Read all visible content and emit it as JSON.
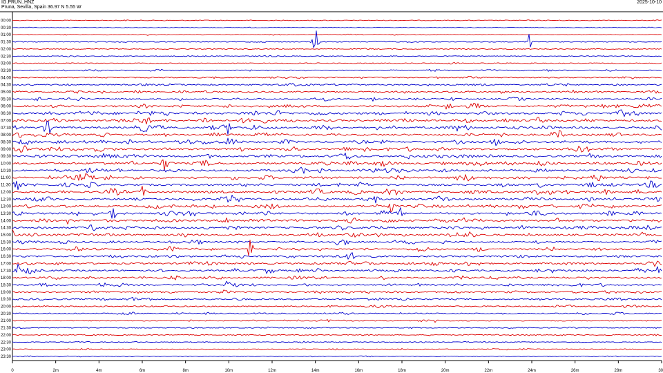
{
  "header": {
    "station": "IG.PRUN..HNZ",
    "location": "Pruna, Sevilla, Spain  36.97 N 5.55 W",
    "date": "2025-10-10"
  },
  "chart_data": {
    "type": "line",
    "title": "IG.PRUN..HNZ",
    "subtitle": "Pruna, Sevilla, Spain  36.97 N 5.55 W",
    "xlabel": "",
    "ylabel": "",
    "xlim": [
      0,
      30
    ],
    "x_unit_suffix": "m",
    "x_ticks": [
      "0",
      "2m",
      "4m",
      "6m",
      "8m",
      "10m",
      "12m",
      "14m",
      "16m",
      "18m",
      "20m",
      "22m",
      "24m",
      "26m",
      "28m",
      "30"
    ],
    "row_labels": [
      "00:00",
      "00:30",
      "01:00",
      "01:30",
      "02:00",
      "02:30",
      "03:00",
      "03:30",
      "04:00",
      "04:30",
      "05:00",
      "05:30",
      "06:00",
      "06:30",
      "07:00",
      "07:30",
      "08:00",
      "08:30",
      "09:00",
      "09:30",
      "10:00",
      "10:30",
      "11:00",
      "11:30",
      "12:00",
      "12:30",
      "13:00",
      "13:30",
      "14:00",
      "14:30",
      "15:00",
      "15:30",
      "16:00",
      "16:30",
      "17:00",
      "17:30",
      "18:00",
      "18:30",
      "19:00",
      "19:30",
      "20:00",
      "20:30",
      "21:00",
      "21:30",
      "22:00",
      "22:30",
      "23:00",
      "23:30"
    ],
    "series_colors": [
      "#dd0000",
      "#0000cc"
    ],
    "row_activity": [
      0.15,
      0.15,
      0.2,
      0.25,
      0.25,
      0.25,
      0.3,
      0.45,
      0.45,
      0.55,
      0.6,
      0.7,
      0.95,
      1.0,
      1.0,
      1.0,
      1.0,
      1.0,
      1.0,
      1.0,
      1.0,
      1.0,
      1.0,
      1.0,
      1.0,
      1.0,
      1.0,
      0.95,
      0.95,
      0.9,
      0.9,
      0.85,
      0.85,
      0.85,
      0.8,
      0.8,
      0.75,
      0.7,
      0.65,
      0.6,
      0.55,
      0.5,
      0.45,
      0.35,
      0.3,
      0.25,
      0.25,
      0.2
    ],
    "events": [
      {
        "row": 3,
        "minute": 14.0,
        "amplitude": 18
      },
      {
        "row": 3,
        "minute": 23.9,
        "amplitude": 20
      },
      {
        "row": 15,
        "minute": 10.0,
        "amplitude": 9
      },
      {
        "row": 20,
        "minute": 7.0,
        "amplitude": 8
      },
      {
        "row": 24,
        "minute": 6.0,
        "amplitude": 8
      },
      {
        "row": 26,
        "minute": 17.5,
        "amplitude": 10
      },
      {
        "row": 27,
        "minute": 4.6,
        "amplitude": 11
      },
      {
        "row": 27,
        "minute": 17.9,
        "amplitude": 9
      },
      {
        "row": 28,
        "minute": 2.6,
        "amplitude": 8
      },
      {
        "row": 30,
        "minute": 0.0,
        "amplitude": 10
      },
      {
        "row": 32,
        "minute": 11.0,
        "amplitude": 14
      },
      {
        "row": 35,
        "minute": 0.2,
        "amplitude": 10
      },
      {
        "row": 35,
        "minute": 29.8,
        "amplitude": 12
      },
      {
        "row": 37,
        "minute": 9.9,
        "amplitude": 9
      }
    ]
  }
}
